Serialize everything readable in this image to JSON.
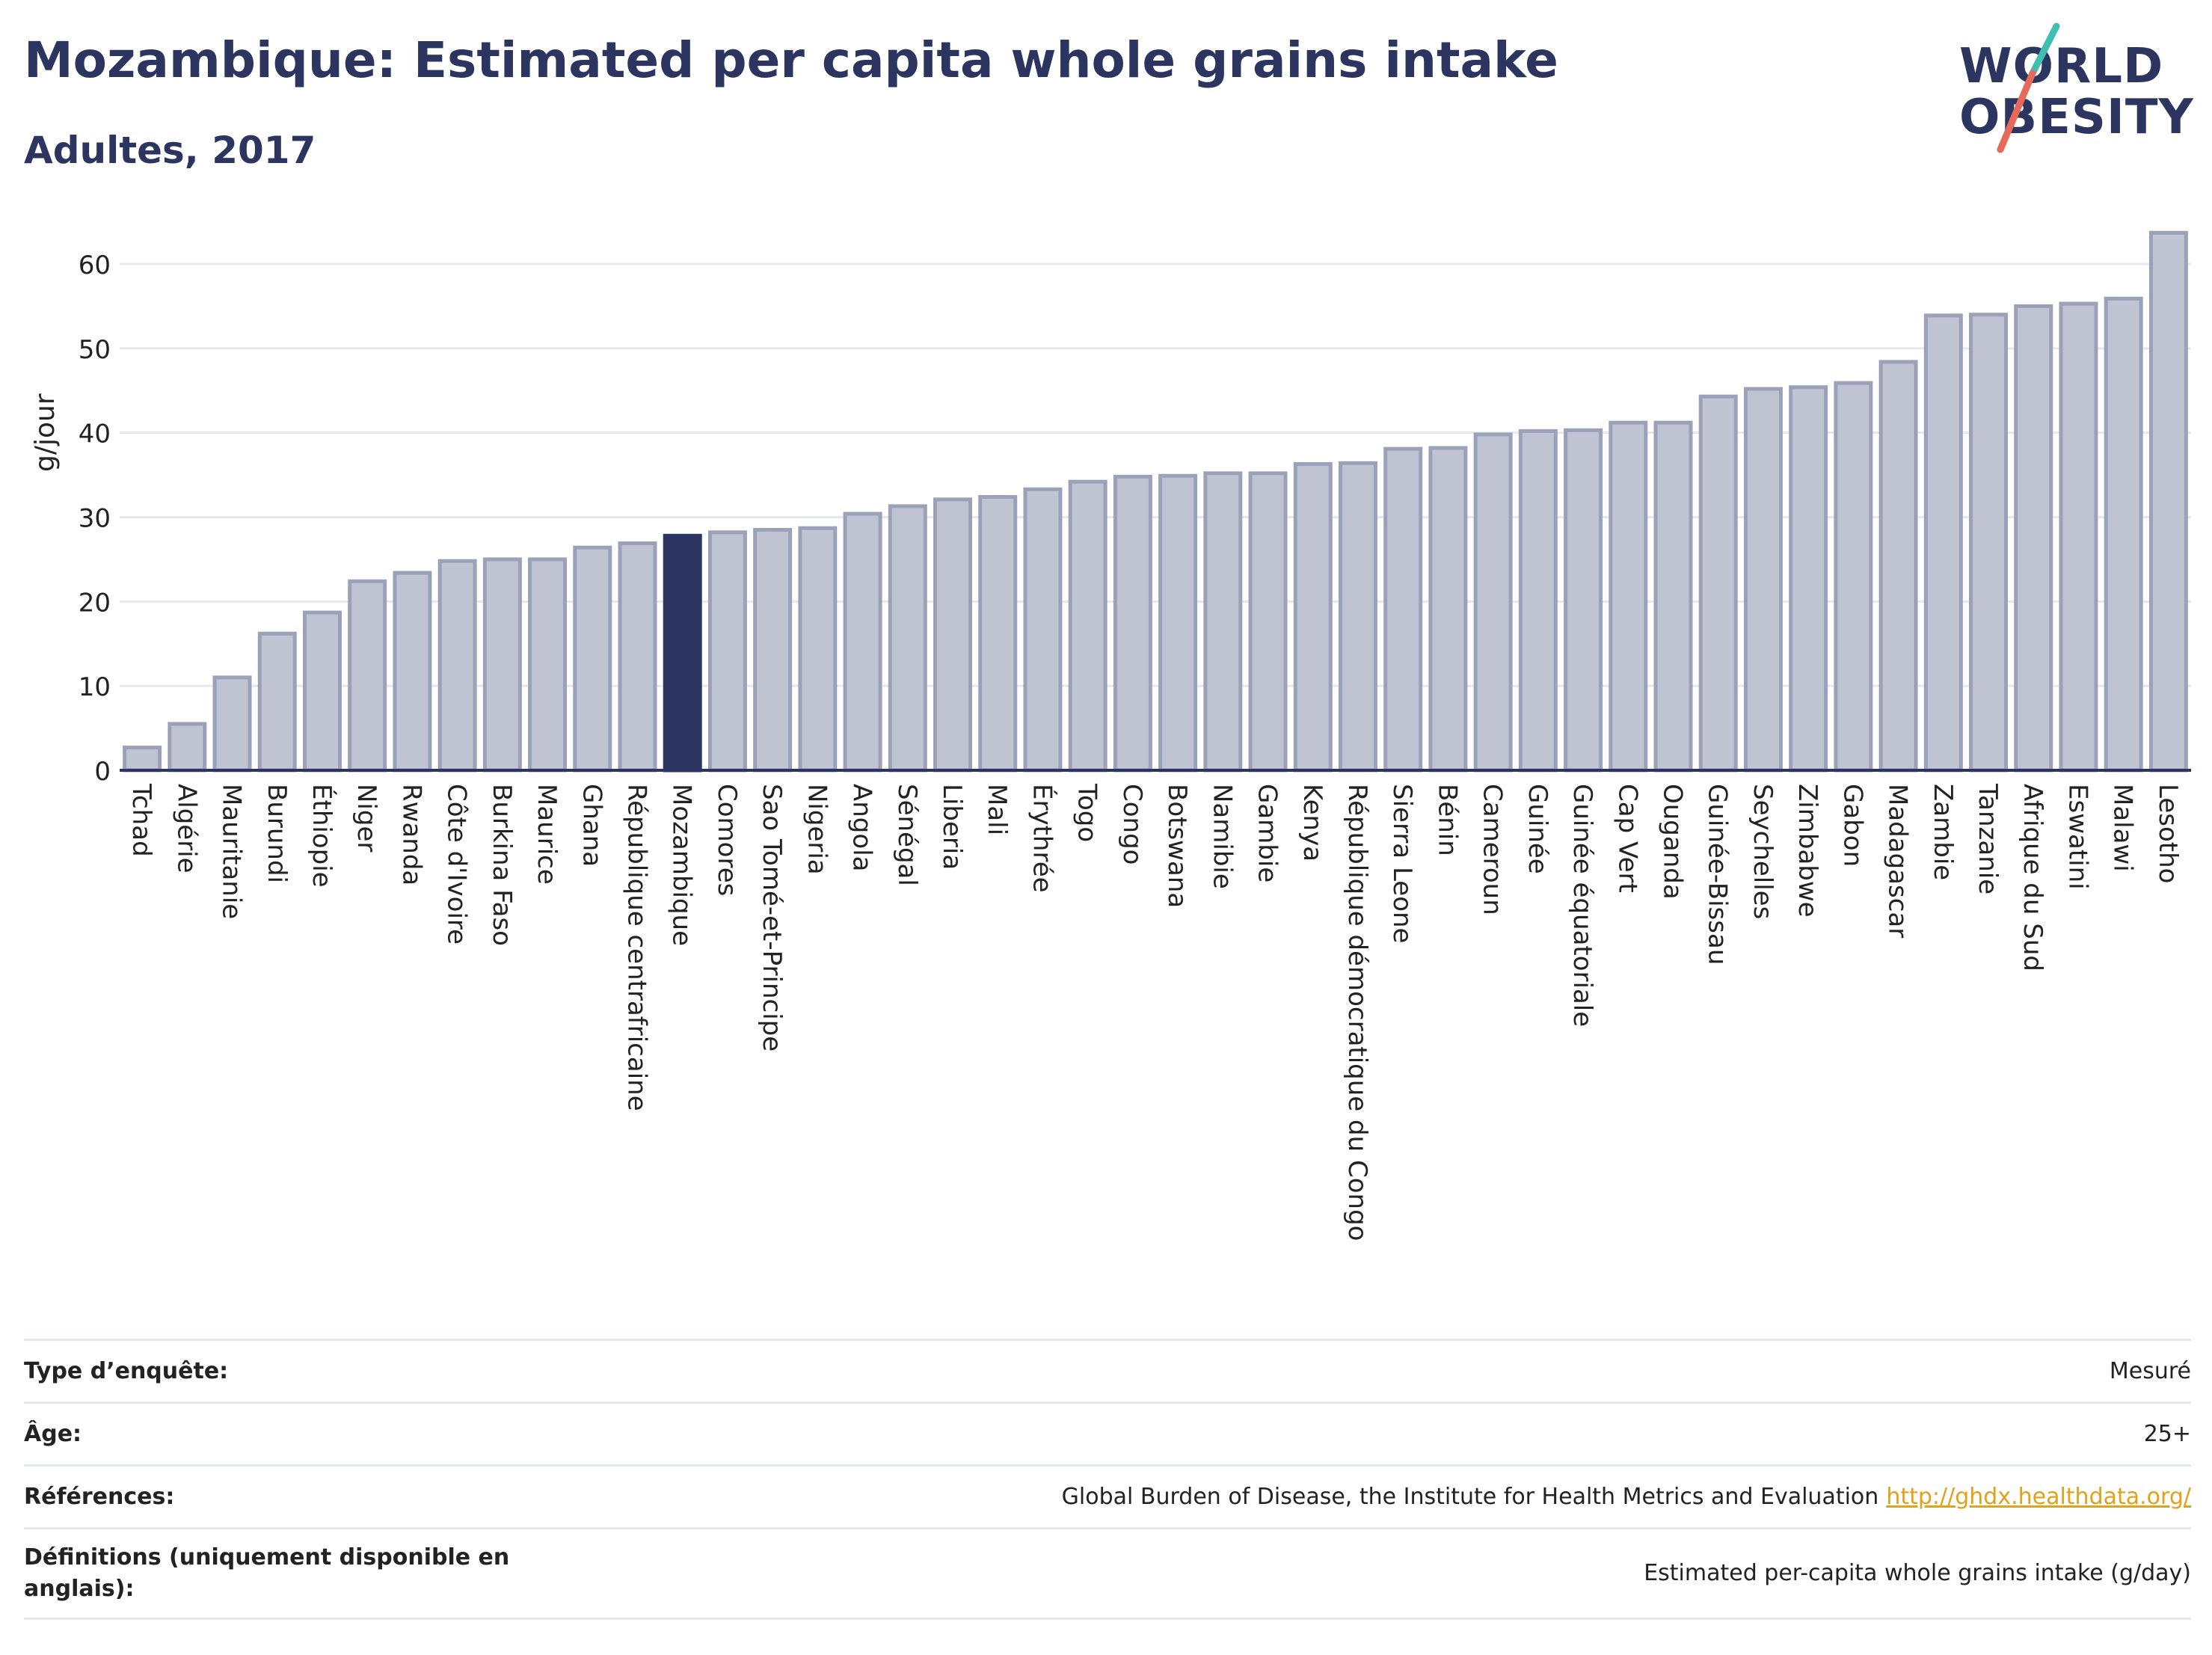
{
  "header": {
    "title": "Mozambique: Estimated per capita whole grains intake",
    "subtitle": "Adultes, 2017"
  },
  "logo": {
    "line1": "WORLD",
    "line2": "OBESITY",
    "colors": {
      "text": "#2b3560",
      "slash_teal": "#3fbfb0",
      "slash_red": "#e8685a"
    }
  },
  "colors": {
    "bar_default": "#bfc3d2",
    "bar_default_stroke": "#9ba1b8",
    "bar_highlight": "#2b3560",
    "grid": "#e6e8f0",
    "axis": "#2b3560",
    "link": "#e0a21b"
  },
  "chart_data": {
    "type": "bar",
    "title": "Mozambique: Estimated per capita whole grains intake",
    "subtitle": "Adultes, 2017",
    "xlabel": "",
    "ylabel": "g/jour",
    "ylim": [
      0,
      65
    ],
    "yticks": [
      0,
      10,
      20,
      30,
      40,
      50,
      60
    ],
    "grid": true,
    "highlight": "Mozambique",
    "categories": [
      "Tchad",
      "Algérie",
      "Mauritanie",
      "Burundi",
      "Éthiopie",
      "Niger",
      "Rwanda",
      "Côte d'Ivoire",
      "Burkina Faso",
      "Maurice",
      "Ghana",
      "République centrafricaine",
      "Mozambique",
      "Comores",
      "Sao Tomé-et-Principe",
      "Nigeria",
      "Angola",
      "Sénégal",
      "Liberia",
      "Mali",
      "Érythrée",
      "Togo",
      "Congo",
      "Botswana",
      "Namibie",
      "Gambie",
      "Kenya",
      "République démocratique du Congo",
      "Sierra Leone",
      "Bénin",
      "Cameroun",
      "Guinée",
      "Guinée équatoriale",
      "Cap Vert",
      "Ouganda",
      "Guinée-Bissau",
      "Seychelles",
      "Zimbabwe",
      "Gabon",
      "Madagascar",
      "Zambie",
      "Tanzanie",
      "Afrique du Sud",
      "Eswatini",
      "Malawi",
      "Lesotho"
    ],
    "values": [
      2.7,
      5.5,
      11.0,
      16.2,
      18.7,
      22.4,
      23.4,
      24.8,
      25.0,
      25.0,
      26.4,
      26.9,
      27.8,
      28.2,
      28.5,
      28.7,
      30.4,
      31.3,
      32.1,
      32.4,
      33.3,
      34.2,
      34.8,
      34.9,
      35.2,
      35.2,
      36.3,
      36.4,
      38.1,
      38.2,
      39.8,
      40.2,
      40.3,
      41.2,
      41.2,
      44.3,
      45.2,
      45.4,
      45.9,
      48.4,
      53.9,
      54.0,
      55.0,
      55.3,
      55.9,
      63.7
    ]
  },
  "info": {
    "rows": [
      {
        "label": "Type d’enquête:",
        "value": "Mesuré"
      },
      {
        "label": "Âge:",
        "value": "25+"
      },
      {
        "label": "Références:",
        "value": "Global Burden of Disease, the Institute for Health Metrics and Evaluation",
        "link": "http://ghdx.healthdata.org/"
      },
      {
        "label": "Définitions (uniquement disponible en anglais):",
        "value": "Estimated per-capita whole grains intake (g/day)"
      }
    ]
  }
}
